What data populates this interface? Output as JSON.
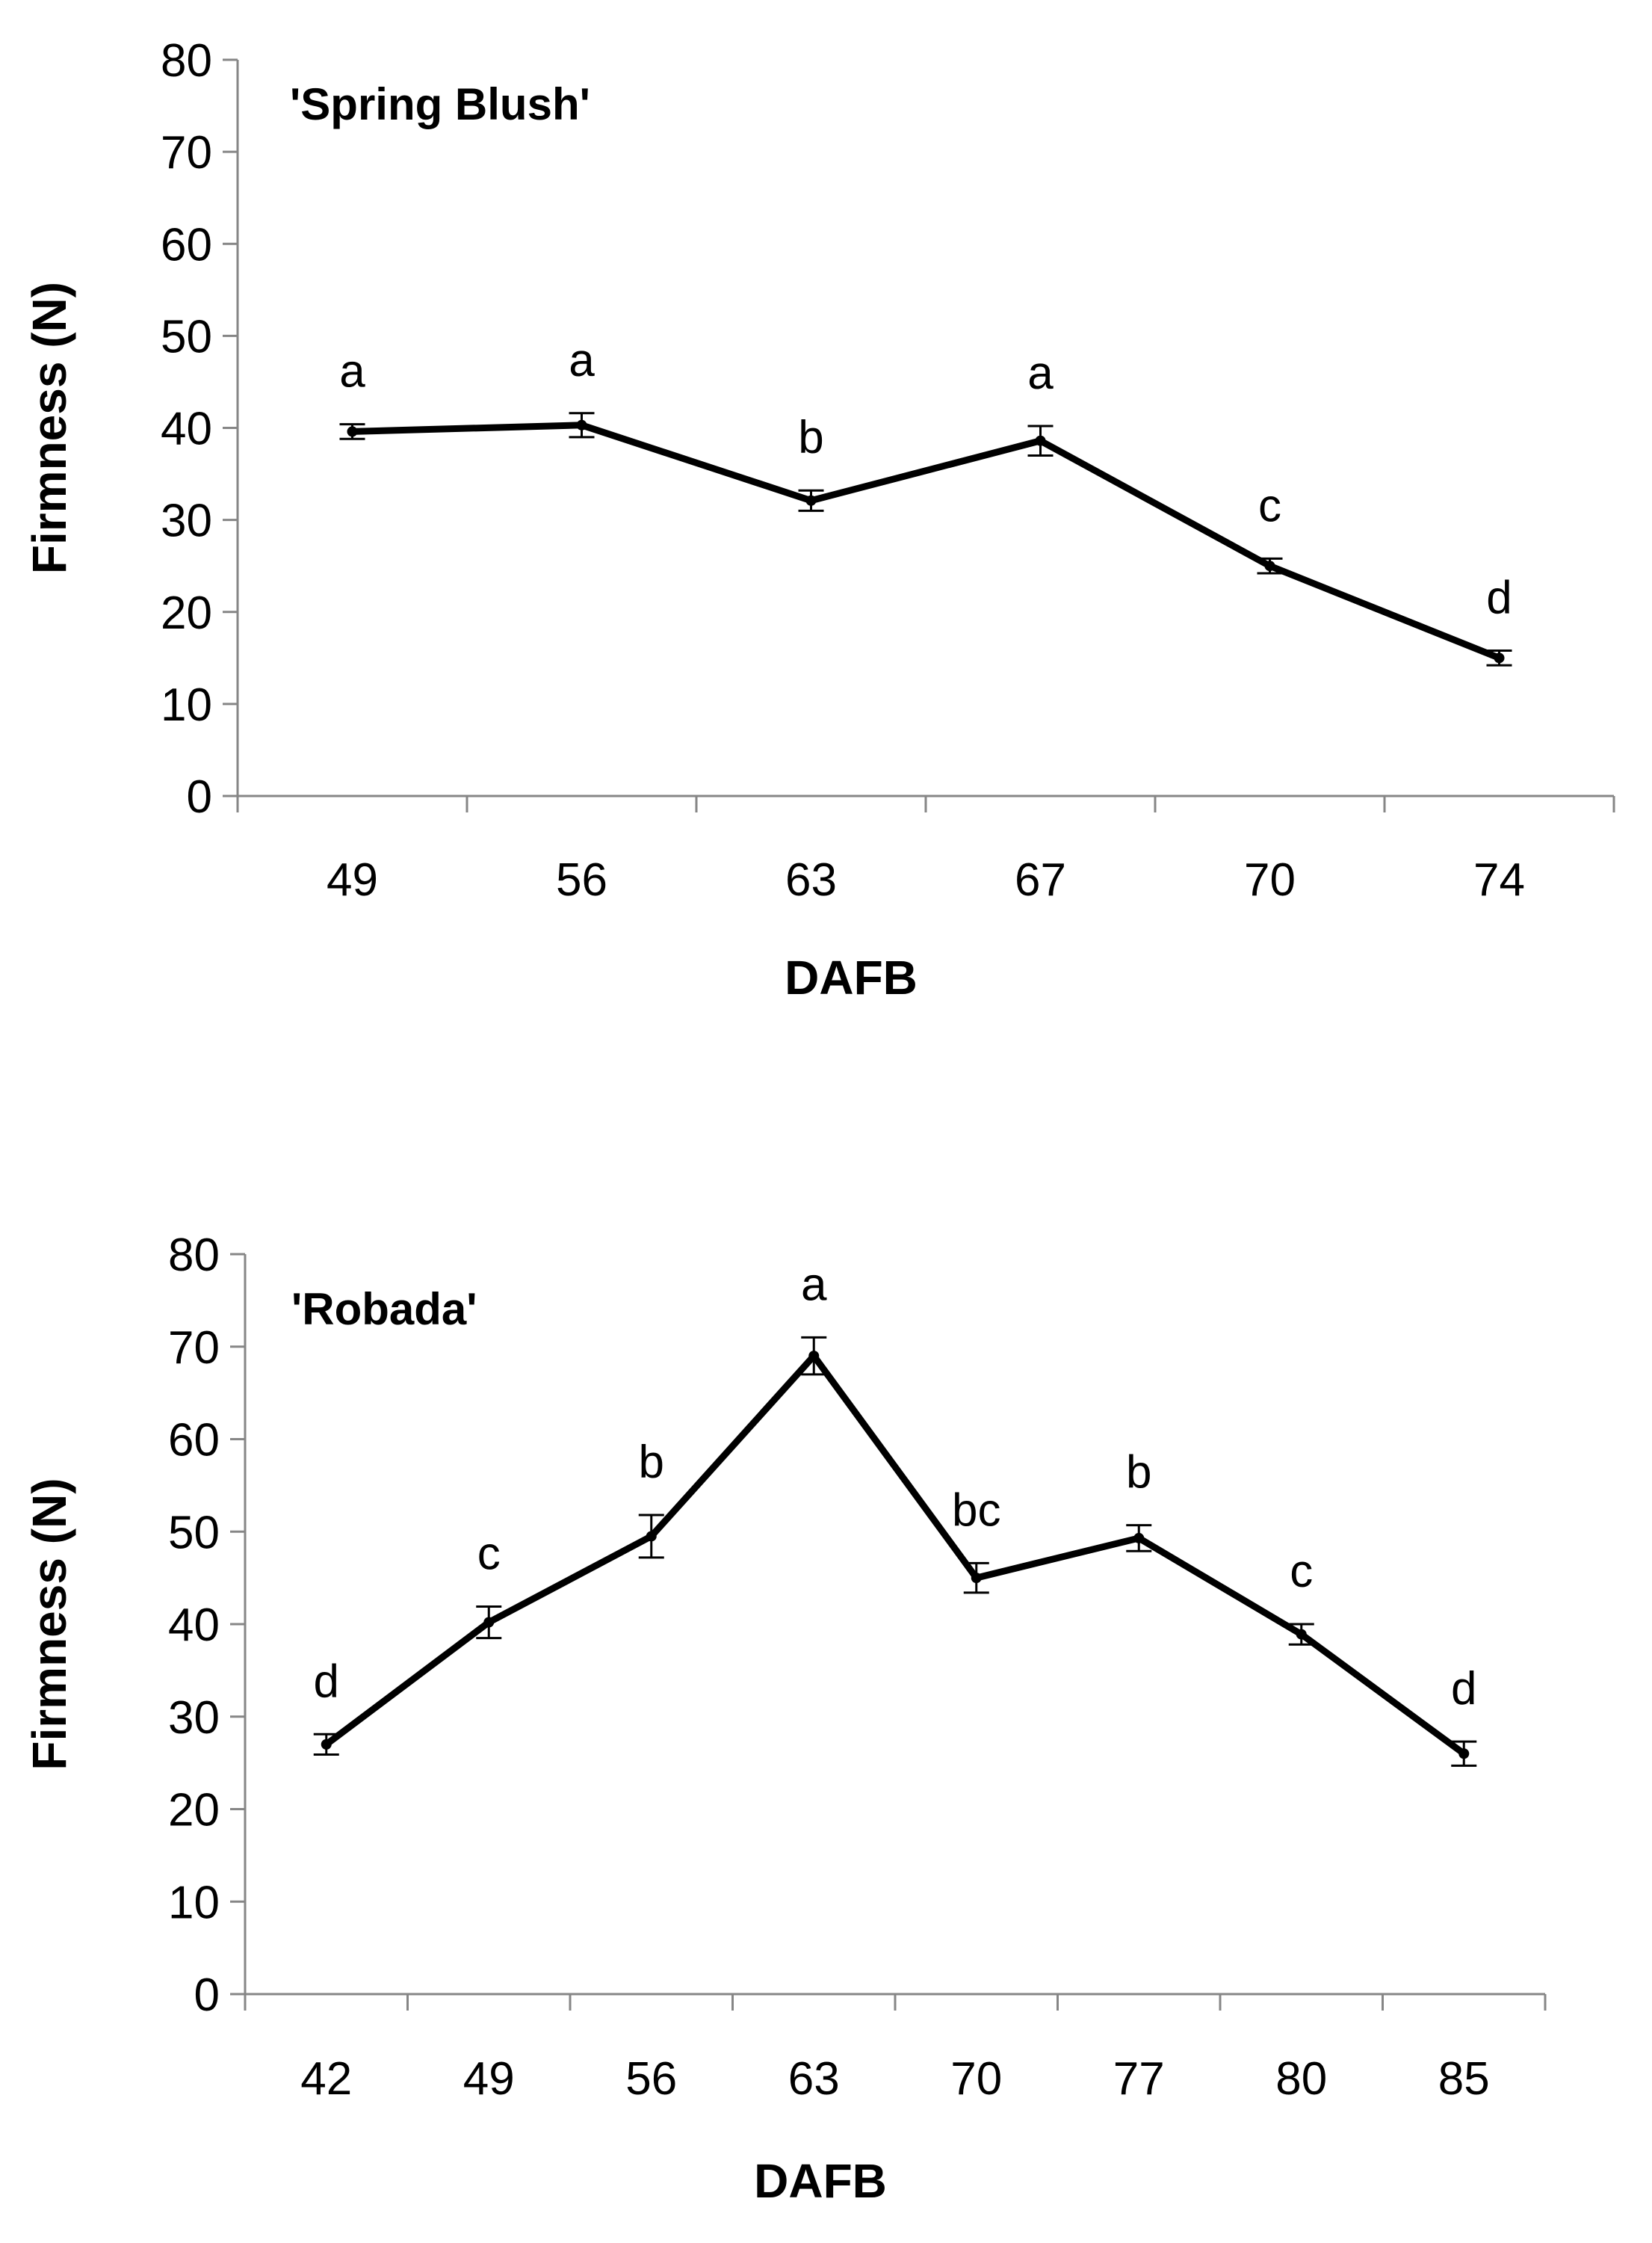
{
  "chart_data": [
    {
      "type": "line",
      "title": "'Spring Blush'",
      "xlabel": "DAFB",
      "ylabel": "Firmness (N)",
      "ylim": [
        0,
        80
      ],
      "yticks": [
        0,
        10,
        20,
        30,
        40,
        50,
        60,
        70,
        80
      ],
      "categories": [
        "49",
        "56",
        "63",
        "67",
        "70",
        "74"
      ],
      "series": [
        {
          "name": "Firmness",
          "values": [
            39.6,
            40.3,
            32.1,
            38.6,
            25.0,
            15.0
          ],
          "errors": [
            0.8,
            1.3,
            1.1,
            1.6,
            0.8,
            0.8
          ],
          "labels": [
            "a",
            "a",
            "b",
            "a",
            "c",
            "d"
          ]
        }
      ]
    },
    {
      "type": "line",
      "title": "'Robada'",
      "xlabel": "DAFB",
      "ylabel": "Firmness (N)",
      "ylim": [
        0,
        80
      ],
      "yticks": [
        0,
        10,
        20,
        30,
        40,
        50,
        60,
        70,
        80
      ],
      "categories": [
        "42",
        "49",
        "56",
        "63",
        "70",
        "77",
        "80",
        "85"
      ],
      "series": [
        {
          "name": "Firmness",
          "values": [
            27.0,
            40.2,
            49.5,
            69.0,
            45.0,
            49.3,
            38.9,
            26.0
          ],
          "errors": [
            1.1,
            1.7,
            2.3,
            2.0,
            1.6,
            1.4,
            1.1,
            1.3
          ],
          "labels": [
            "d",
            "c",
            "b",
            "a",
            "bc",
            "b",
            "c",
            "d"
          ]
        }
      ]
    }
  ]
}
